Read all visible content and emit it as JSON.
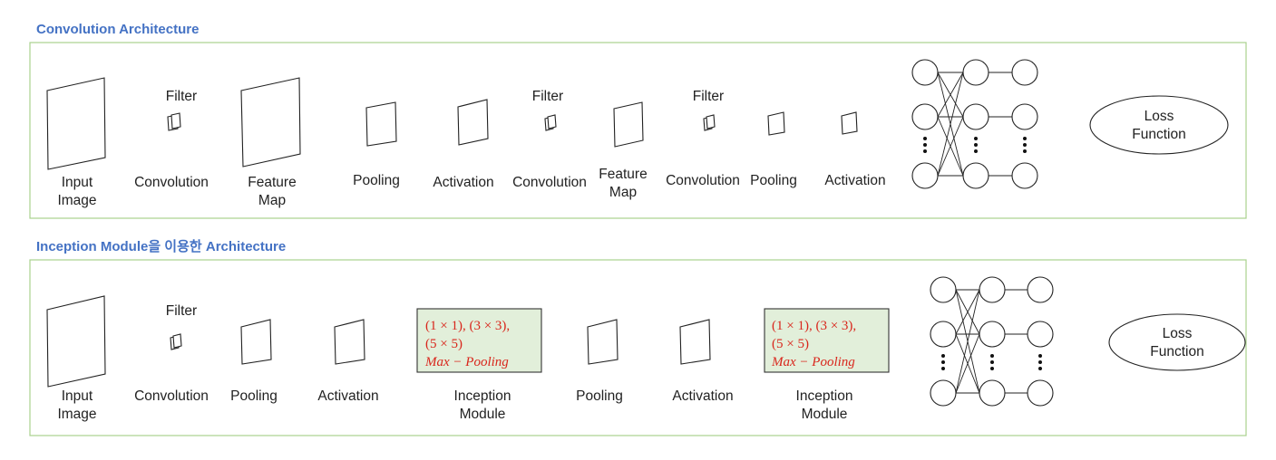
{
  "section1": {
    "title": "Convolution Architecture",
    "filter_labels": [
      "Filter",
      "Filter",
      "Filter"
    ],
    "stage_labels": [
      [
        "Input",
        "Image"
      ],
      [
        "Convolution"
      ],
      [
        "Feature",
        "Map"
      ],
      [
        "Pooling"
      ],
      [
        "Activation"
      ],
      [
        "Convolution"
      ],
      [
        "Feature",
        "Map"
      ],
      [
        "Convolution"
      ],
      [
        "Pooling"
      ],
      [
        "Activation"
      ]
    ],
    "loss": [
      "Loss",
      "Function"
    ]
  },
  "section2": {
    "title": "Inception Module을 이용한 Architecture",
    "filter_labels": [
      "Filter"
    ],
    "stage_labels": [
      [
        "Input",
        "Image"
      ],
      [
        "Convolution"
      ],
      [
        "Pooling"
      ],
      [
        "Activation"
      ],
      [
        "Inception",
        "Module"
      ],
      [
        "Pooling"
      ],
      [
        "Activation"
      ],
      [
        "Inception",
        "Module"
      ]
    ],
    "inception_box": {
      "line1": "(1 × 1),  (3 × 3),",
      "line2": "(5 × 5)",
      "line3": "Max − Pooling"
    },
    "loss": [
      "Loss",
      "Function"
    ]
  }
}
